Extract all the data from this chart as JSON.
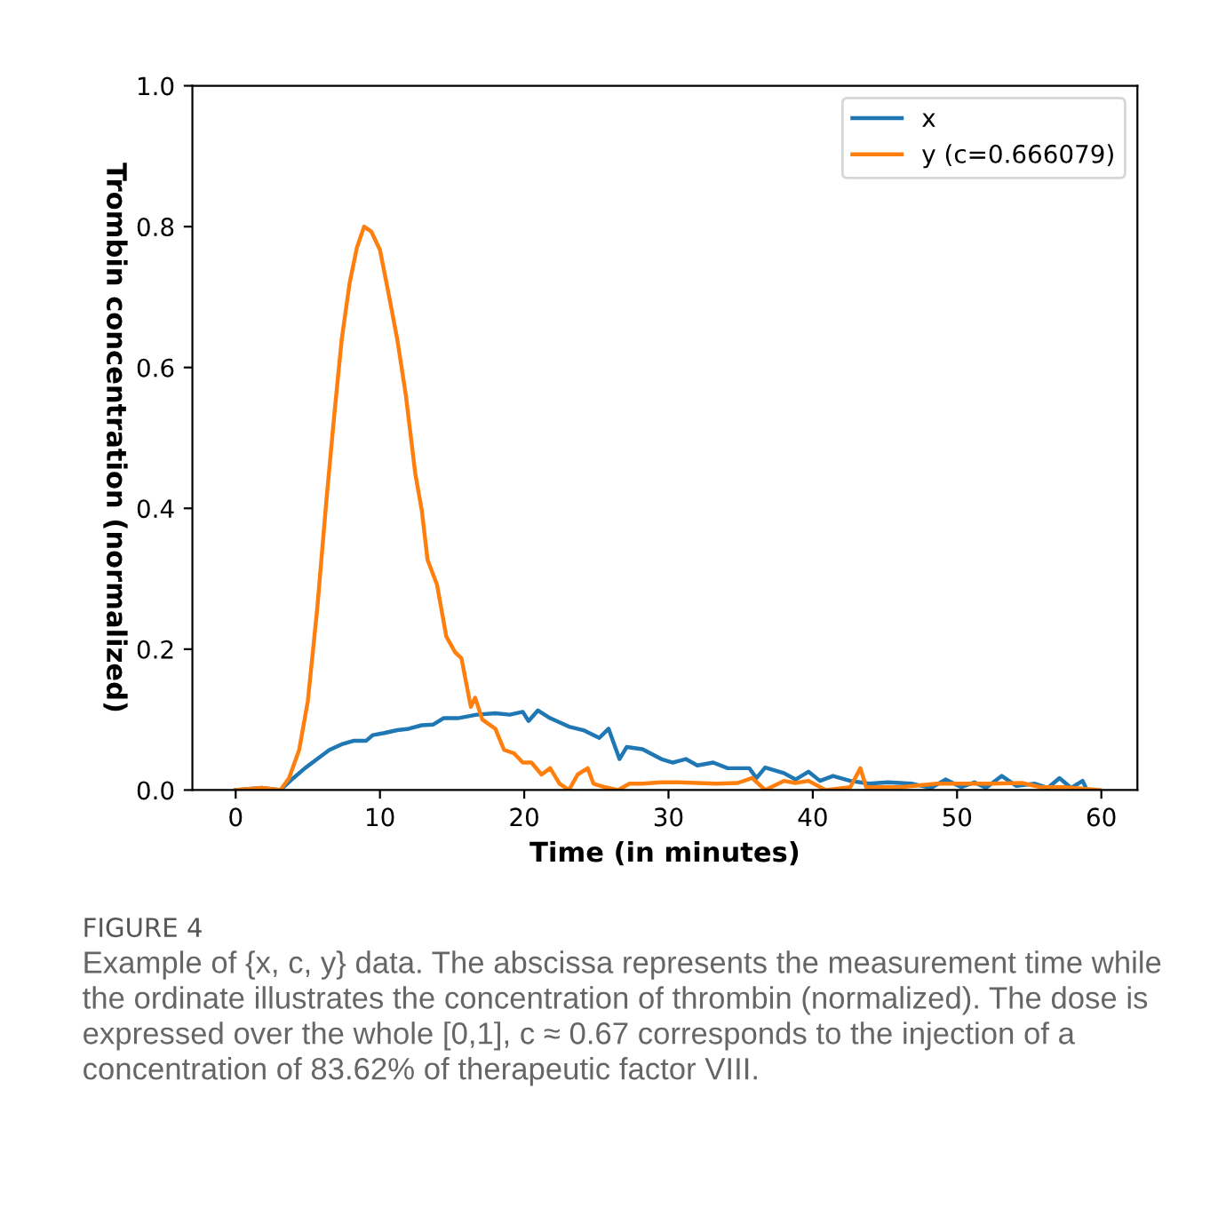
{
  "chart_data": {
    "type": "line",
    "xlabel": "Time (in minutes)",
    "ylabel": "Trombin concentration (normalized)",
    "xlim": [
      -3,
      62.5
    ],
    "xticks": [
      0,
      10,
      20,
      30,
      40,
      50,
      60
    ],
    "ylim": [
      0,
      1.0
    ],
    "yticks": [
      {
        "value": 0,
        "label": "0.0"
      },
      0.2,
      0.4,
      0.6,
      0.8,
      {
        "value": 1,
        "label": "1.0"
      }
    ],
    "grid": false,
    "legend": "top right",
    "marker": "none",
    "line_style": "solid",
    "annotations": [
      "FIGURE 4",
      "Example of {x, c, y} data. The abscissa represents the measurement time while the ordinate illustrates the concentration of thrombin (normalized). The dose is expressed over the whole [0,1], c ≈ 0.67 corresponds to the injection of a concentration of 83.62% of therapeutic factor VIII."
    ],
    "series": [
      {
        "name": "x",
        "color": "#1f77b4",
        "x": [
          0,
          1.8,
          3.1,
          4.0,
          4.8,
          5.65,
          6.5,
          7.35,
          8.2,
          9.05,
          9.5,
          10.3,
          11.2,
          12.0,
          12.9,
          13.7,
          14.4,
          15.4,
          16.7,
          18.0,
          19.0,
          19.9,
          20.3,
          20.95,
          21.8,
          23.1,
          24.1,
          25.2,
          25.85,
          26.6,
          27.1,
          28.2,
          29.5,
          30.3,
          31.2,
          32,
          33.1,
          34.1,
          35.6,
          36.1,
          36.7,
          38,
          38.8,
          39.7,
          40.5,
          41.4,
          42.6,
          43.9,
          45.2,
          46.9,
          48.2,
          49.2,
          50.3,
          51.2,
          52.0,
          53.1,
          54.1,
          55.4,
          56.3,
          57.1,
          57.9,
          58.7,
          59
        ],
        "values": [
          0,
          0.003,
          0,
          0.017,
          0.031,
          0.044,
          0.057,
          0.065,
          0.07,
          0.07,
          0.078,
          0.081,
          0.085,
          0.087,
          0.092,
          0.093,
          0.102,
          0.102,
          0.107,
          0.109,
          0.107,
          0.111,
          0.098,
          0.113,
          0.102,
          0.09,
          0.085,
          0.074,
          0.087,
          0.044,
          0.061,
          0.058,
          0.044,
          0.039,
          0.044,
          0.035,
          0.039,
          0.031,
          0.031,
          0.017,
          0.032,
          0.024,
          0.015,
          0.026,
          0.013,
          0.02,
          0.013,
          0.009,
          0.011,
          0.009,
          0.003,
          0.015,
          0.004,
          0.011,
          0.003,
          0.02,
          0.006,
          0.009,
          0.003,
          0.017,
          0.003,
          0.013,
          0
        ]
      },
      {
        "name": "y (c=0.666079)",
        "color": "#ff7f0e",
        "x": [
          0,
          1.8,
          3.1,
          3.7,
          4.4,
          5.0,
          5.65,
          6.3,
          6.85,
          7.35,
          7.9,
          8.4,
          8.9,
          9.4,
          10.0,
          10.55,
          11.2,
          11.8,
          12.45,
          12.9,
          13.3,
          13.95,
          14.6,
          15.2,
          15.65,
          16.3,
          16.6,
          17.1,
          18.0,
          18.6,
          19.3,
          19.9,
          20.5,
          21.2,
          21.8,
          22.45,
          23.1,
          23.7,
          24.4,
          24.8,
          25.6,
          26.5,
          27.3,
          28.2,
          29.5,
          30.7,
          33.3,
          34.8,
          35.8,
          36.7,
          38,
          38.8,
          39.7,
          40.9,
          42.6,
          43.3,
          43.7,
          46,
          48.6,
          50.7,
          52.4,
          54.5,
          55.8,
          57.5,
          59.9
        ],
        "values": [
          0,
          0.003,
          0,
          0.017,
          0.057,
          0.126,
          0.257,
          0.414,
          0.536,
          0.64,
          0.72,
          0.77,
          0.8,
          0.793,
          0.767,
          0.71,
          0.64,
          0.56,
          0.449,
          0.397,
          0.327,
          0.292,
          0.218,
          0.196,
          0.187,
          0.118,
          0.131,
          0.1,
          0.087,
          0.057,
          0.052,
          0.039,
          0.039,
          0.022,
          0.031,
          0.009,
          0,
          0.022,
          0.031,
          0.009,
          0.004,
          0,
          0.009,
          0.009,
          0.011,
          0.011,
          0.009,
          0.01,
          0.017,
          0,
          0.013,
          0.01,
          0.013,
          0,
          0.004,
          0.031,
          0.004,
          0.004,
          0.009,
          0.009,
          0.009,
          0.01,
          0.004,
          0.004,
          0
        ]
      }
    ]
  }
}
